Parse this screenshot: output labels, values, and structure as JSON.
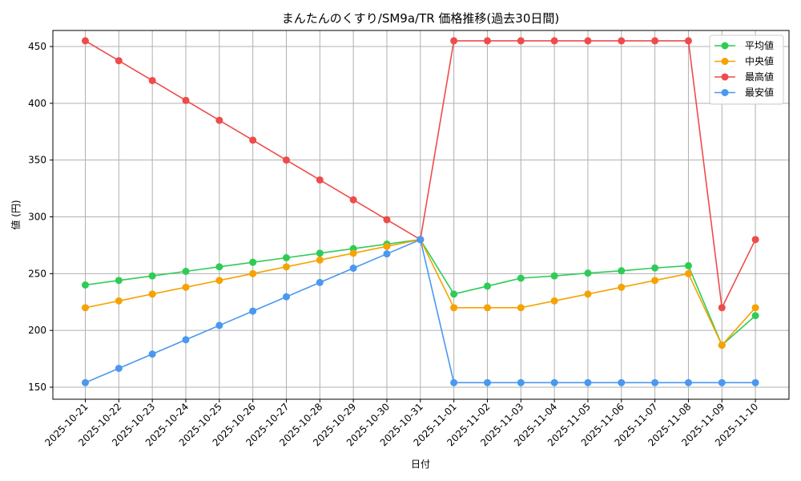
{
  "chart_data": {
    "type": "line",
    "title": "まんたんのくすり/SM9a/TR 価格推移(過去30日間)",
    "xlabel": "日付",
    "ylabel": "値 (円)",
    "ylim": [
      138,
      470
    ],
    "yticks": [
      150,
      200,
      250,
      300,
      350,
      400,
      450
    ],
    "grid": true,
    "legend_position": "upper right",
    "x": [
      "2025-10-21",
      "2025-10-22",
      "2025-10-23",
      "2025-10-24",
      "2025-10-25",
      "2025-10-26",
      "2025-10-27",
      "2025-10-28",
      "2025-10-29",
      "2025-10-30",
      "2025-10-31",
      "2025-11-01",
      "2025-11-02",
      "2025-11-03",
      "2025-11-04",
      "2025-11-05",
      "2025-11-06",
      "2025-11-07",
      "2025-11-08",
      "2025-11-09",
      "2025-11-10"
    ],
    "series": [
      {
        "name": "平均値",
        "color": "#2ecc57",
        "values": [
          240,
          244,
          248,
          252,
          256,
          260,
          264,
          268,
          272,
          276,
          280,
          232,
          239,
          246,
          248,
          250.5,
          252.5,
          255,
          257,
          187,
          213
        ]
      },
      {
        "name": "中央値",
        "color": "#f5a300",
        "values": [
          220,
          226,
          232,
          238,
          244,
          250,
          256,
          262,
          268,
          274,
          280,
          220,
          220,
          220,
          226,
          232,
          238,
          244,
          250,
          187,
          220
        ]
      },
      {
        "name": "最高値",
        "color": "#ef4b4b",
        "values": [
          455,
          437.5,
          420,
          402.5,
          385,
          367.5,
          350,
          332.5,
          315,
          297.5,
          280,
          455,
          455,
          455,
          455,
          455,
          455,
          455,
          455,
          220,
          280
        ]
      },
      {
        "name": "最安値",
        "color": "#4a98f0",
        "values": [
          154,
          166.6,
          179.2,
          191.8,
          204.4,
          217,
          229.6,
          242.2,
          254.8,
          267.4,
          280,
          154,
          154,
          154,
          154,
          154,
          154,
          154,
          154,
          154,
          154
        ]
      }
    ]
  }
}
